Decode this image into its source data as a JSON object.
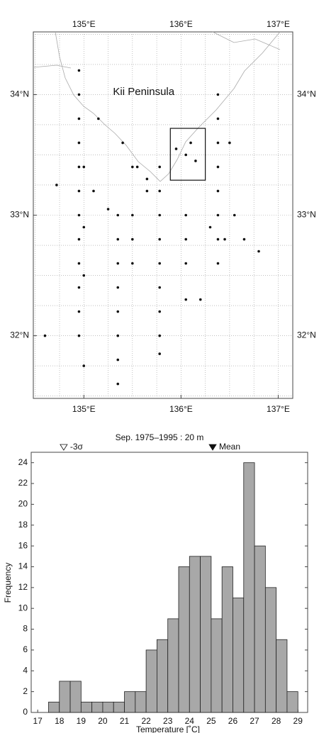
{
  "chart_data": [
    {
      "type": "map",
      "xlim": [
        134.48,
        137.15
      ],
      "ylim": [
        31.48,
        34.52
      ],
      "xticks": [
        {
          "value": 135,
          "label": "135°E"
        },
        {
          "value": 136,
          "label": "136°E"
        },
        {
          "value": 137,
          "label": "137°E"
        }
      ],
      "yticks": [
        {
          "value": 32,
          "label": "32°N"
        },
        {
          "value": 33,
          "label": "33°N"
        },
        {
          "value": 34,
          "label": "34°N"
        }
      ],
      "xgrid": [
        134.5,
        134.75,
        135,
        135.25,
        135.5,
        135.75,
        136,
        136.25,
        136.5,
        136.75,
        137
      ],
      "ygrid": [
        31.5,
        31.75,
        32,
        32.25,
        32.5,
        32.75,
        33,
        33.25,
        33.5,
        33.75,
        34,
        34.25,
        34.5
      ],
      "annotations": [
        {
          "text": "Kii Peninsula",
          "x": 135.3,
          "y": 34.02
        }
      ],
      "box": {
        "lon": [
          135.89,
          136.25
        ],
        "lat": [
          33.29,
          33.72
        ]
      },
      "series": [
        {
          "color": "#111111",
          "x": [
            134.95,
            134.95,
            134.95,
            134.95,
            134.95,
            134.95,
            134.95,
            134.95,
            134.95,
            134.95,
            134.95,
            134.95,
            135.0,
            135.0,
            135.0,
            135.0,
            135.35,
            135.35,
            135.35,
            135.35,
            135.35,
            135.35,
            135.35,
            135.35,
            135.5,
            135.5,
            135.5,
            135.5,
            135.78,
            135.78,
            135.78,
            135.78,
            135.78,
            135.78,
            135.78,
            135.78,
            135.78,
            136.05,
            136.05,
            136.05,
            136.05,
            136.38,
            136.38,
            136.38,
            136.38,
            136.38,
            136.38,
            136.38,
            136.38,
            135.15,
            135.4,
            135.55,
            135.65,
            135.95,
            136.05,
            136.1,
            136.15,
            136.5,
            136.55,
            136.45,
            136.65,
            136.8,
            134.6,
            134.72,
            135.65,
            136.2,
            136.3,
            135.1,
            135.25
          ],
          "y": [
            34.2,
            34.0,
            33.8,
            33.6,
            33.4,
            33.2,
            33.0,
            32.8,
            32.6,
            32.4,
            32.2,
            32.0,
            33.4,
            32.9,
            32.5,
            31.75,
            33.0,
            32.8,
            32.6,
            32.4,
            32.2,
            32.0,
            31.8,
            31.6,
            33.4,
            33.0,
            32.8,
            32.6,
            33.4,
            33.2,
            33.0,
            32.8,
            32.6,
            32.4,
            32.2,
            32.0,
            31.85,
            33.0,
            32.8,
            32.6,
            32.3,
            34.0,
            33.8,
            33.6,
            33.4,
            33.2,
            33.0,
            32.8,
            32.6,
            33.8,
            33.6,
            33.4,
            33.3,
            33.55,
            33.5,
            33.6,
            33.45,
            33.6,
            33.0,
            32.8,
            32.8,
            32.7,
            32.0,
            33.25,
            33.2,
            32.3,
            32.9,
            33.2,
            33.05
          ]
        }
      ]
    },
    {
      "type": "histogram",
      "title": "Sep. 1975–1995 : 20 m",
      "xlabel": "Temperature [˚C]",
      "ylabel": "Frequency",
      "bins": [
        17.5,
        18,
        18.5,
        19,
        19.5,
        20,
        20.5,
        21,
        21.5,
        22,
        22.5,
        23,
        23.5,
        24,
        24.5,
        25,
        25.5,
        26,
        26.5,
        27,
        27.5,
        28,
        28.5,
        29
      ],
      "values": [
        1,
        3,
        3,
        1,
        1,
        1,
        1,
        2,
        2,
        6,
        7,
        9,
        14,
        15,
        15,
        9,
        14,
        11,
        24,
        16,
        12,
        7,
        2
      ],
      "color": "#a8a8a8",
      "xlim": [
        16.7,
        29.45
      ],
      "ylim": [
        0,
        25
      ],
      "xticks": [
        17,
        18,
        19,
        20,
        21,
        22,
        23,
        24,
        25,
        26,
        27,
        28,
        29
      ],
      "yticks": [
        0,
        2,
        4,
        6,
        8,
        10,
        12,
        14,
        16,
        18,
        20,
        22,
        24
      ],
      "annotations": [
        {
          "text": "-3σ",
          "x": 18.2,
          "marker": "open"
        },
        {
          "text": "Mean",
          "x": 25.07,
          "marker": "filled"
        }
      ]
    }
  ]
}
